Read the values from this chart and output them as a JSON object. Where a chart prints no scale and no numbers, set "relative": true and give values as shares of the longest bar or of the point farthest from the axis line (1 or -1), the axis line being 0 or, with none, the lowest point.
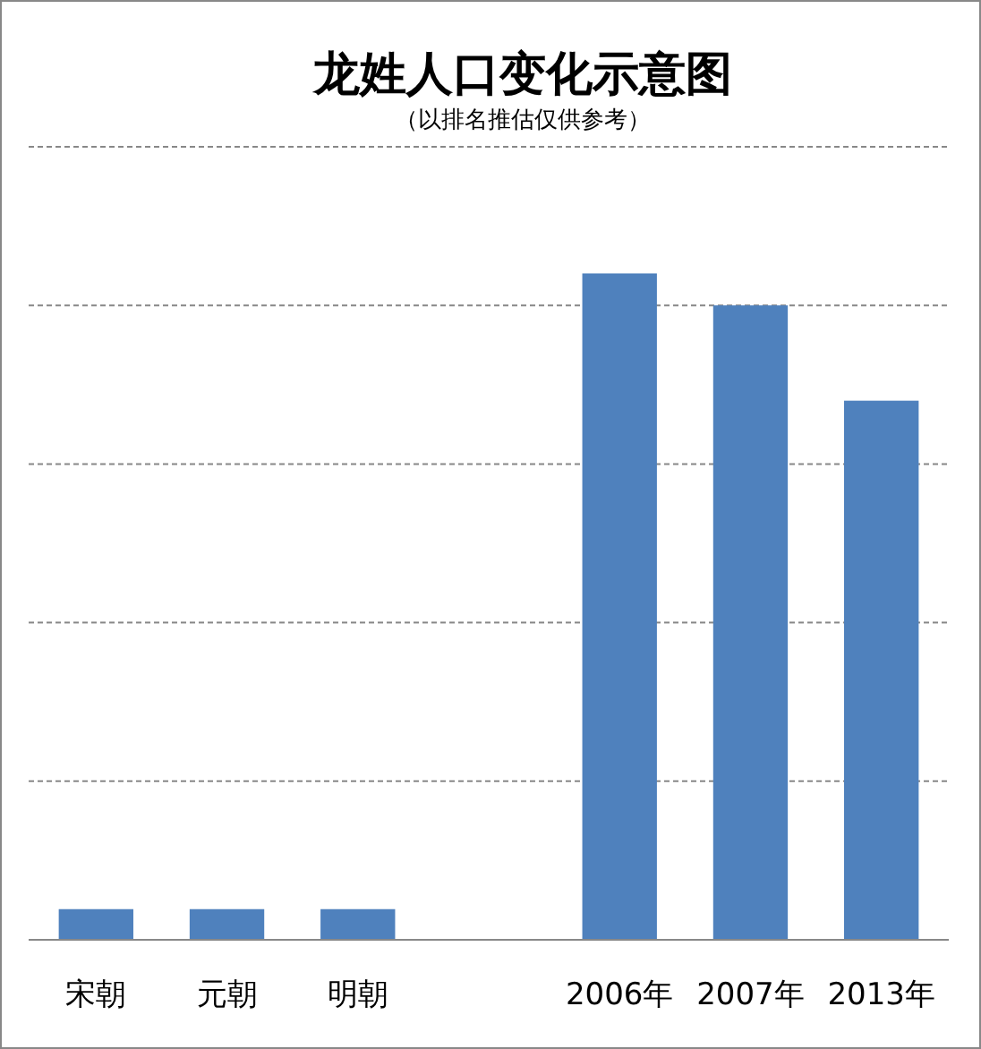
{
  "chart_data": {
    "type": "bar",
    "title": "龙姓人口变化示意图",
    "subtitle": "（以排名推估仅供参考）",
    "categories": [
      "宋朝",
      "元朝",
      "明朝",
      null,
      "2006年",
      "2007年",
      "2013年"
    ],
    "values": [
      0.046,
      0.046,
      0.046,
      null,
      1,
      0.952,
      0.809
    ],
    "color": "#4f81bd",
    "relative": true,
    "grid": true
  }
}
